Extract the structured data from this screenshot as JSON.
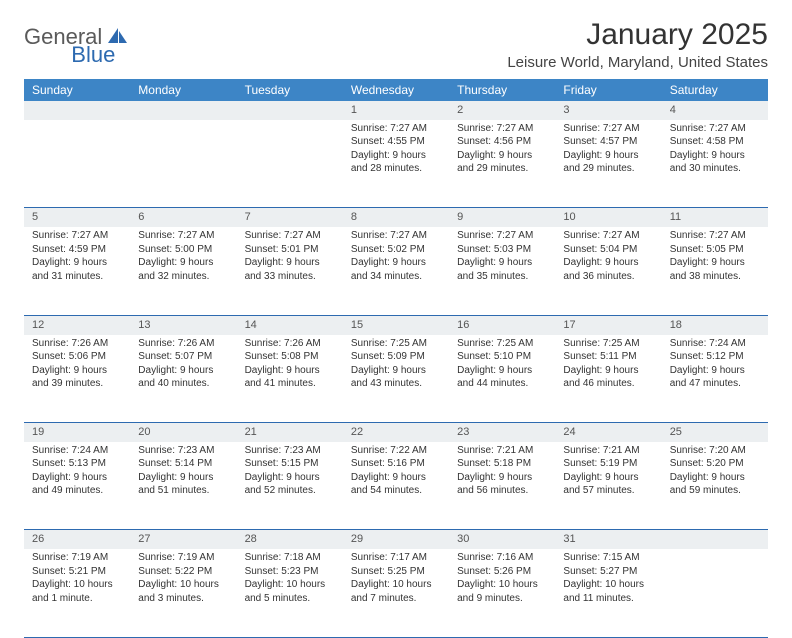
{
  "logo": {
    "text1": "General",
    "text2": "Blue"
  },
  "title": "January 2025",
  "location": "Leisure World, Maryland, United States",
  "header_bg": "#3d85c6",
  "daynum_bg": "#eceff1",
  "border_color": "#2d6ab0",
  "weekdays": [
    "Sunday",
    "Monday",
    "Tuesday",
    "Wednesday",
    "Thursday",
    "Friday",
    "Saturday"
  ],
  "weeks": [
    [
      null,
      null,
      null,
      {
        "d": "1",
        "sr": "7:27 AM",
        "ss": "4:55 PM",
        "dl": "9 hours and 28 minutes."
      },
      {
        "d": "2",
        "sr": "7:27 AM",
        "ss": "4:56 PM",
        "dl": "9 hours and 29 minutes."
      },
      {
        "d": "3",
        "sr": "7:27 AM",
        "ss": "4:57 PM",
        "dl": "9 hours and 29 minutes."
      },
      {
        "d": "4",
        "sr": "7:27 AM",
        "ss": "4:58 PM",
        "dl": "9 hours and 30 minutes."
      }
    ],
    [
      {
        "d": "5",
        "sr": "7:27 AM",
        "ss": "4:59 PM",
        "dl": "9 hours and 31 minutes."
      },
      {
        "d": "6",
        "sr": "7:27 AM",
        "ss": "5:00 PM",
        "dl": "9 hours and 32 minutes."
      },
      {
        "d": "7",
        "sr": "7:27 AM",
        "ss": "5:01 PM",
        "dl": "9 hours and 33 minutes."
      },
      {
        "d": "8",
        "sr": "7:27 AM",
        "ss": "5:02 PM",
        "dl": "9 hours and 34 minutes."
      },
      {
        "d": "9",
        "sr": "7:27 AM",
        "ss": "5:03 PM",
        "dl": "9 hours and 35 minutes."
      },
      {
        "d": "10",
        "sr": "7:27 AM",
        "ss": "5:04 PM",
        "dl": "9 hours and 36 minutes."
      },
      {
        "d": "11",
        "sr": "7:27 AM",
        "ss": "5:05 PM",
        "dl": "9 hours and 38 minutes."
      }
    ],
    [
      {
        "d": "12",
        "sr": "7:26 AM",
        "ss": "5:06 PM",
        "dl": "9 hours and 39 minutes."
      },
      {
        "d": "13",
        "sr": "7:26 AM",
        "ss": "5:07 PM",
        "dl": "9 hours and 40 minutes."
      },
      {
        "d": "14",
        "sr": "7:26 AM",
        "ss": "5:08 PM",
        "dl": "9 hours and 41 minutes."
      },
      {
        "d": "15",
        "sr": "7:25 AM",
        "ss": "5:09 PM",
        "dl": "9 hours and 43 minutes."
      },
      {
        "d": "16",
        "sr": "7:25 AM",
        "ss": "5:10 PM",
        "dl": "9 hours and 44 minutes."
      },
      {
        "d": "17",
        "sr": "7:25 AM",
        "ss": "5:11 PM",
        "dl": "9 hours and 46 minutes."
      },
      {
        "d": "18",
        "sr": "7:24 AM",
        "ss": "5:12 PM",
        "dl": "9 hours and 47 minutes."
      }
    ],
    [
      {
        "d": "19",
        "sr": "7:24 AM",
        "ss": "5:13 PM",
        "dl": "9 hours and 49 minutes."
      },
      {
        "d": "20",
        "sr": "7:23 AM",
        "ss": "5:14 PM",
        "dl": "9 hours and 51 minutes."
      },
      {
        "d": "21",
        "sr": "7:23 AM",
        "ss": "5:15 PM",
        "dl": "9 hours and 52 minutes."
      },
      {
        "d": "22",
        "sr": "7:22 AM",
        "ss": "5:16 PM",
        "dl": "9 hours and 54 minutes."
      },
      {
        "d": "23",
        "sr": "7:21 AM",
        "ss": "5:18 PM",
        "dl": "9 hours and 56 minutes."
      },
      {
        "d": "24",
        "sr": "7:21 AM",
        "ss": "5:19 PM",
        "dl": "9 hours and 57 minutes."
      },
      {
        "d": "25",
        "sr": "7:20 AM",
        "ss": "5:20 PM",
        "dl": "9 hours and 59 minutes."
      }
    ],
    [
      {
        "d": "26",
        "sr": "7:19 AM",
        "ss": "5:21 PM",
        "dl": "10 hours and 1 minute."
      },
      {
        "d": "27",
        "sr": "7:19 AM",
        "ss": "5:22 PM",
        "dl": "10 hours and 3 minutes."
      },
      {
        "d": "28",
        "sr": "7:18 AM",
        "ss": "5:23 PM",
        "dl": "10 hours and 5 minutes."
      },
      {
        "d": "29",
        "sr": "7:17 AM",
        "ss": "5:25 PM",
        "dl": "10 hours and 7 minutes."
      },
      {
        "d": "30",
        "sr": "7:16 AM",
        "ss": "5:26 PM",
        "dl": "10 hours and 9 minutes."
      },
      {
        "d": "31",
        "sr": "7:15 AM",
        "ss": "5:27 PM",
        "dl": "10 hours and 11 minutes."
      },
      null
    ]
  ]
}
